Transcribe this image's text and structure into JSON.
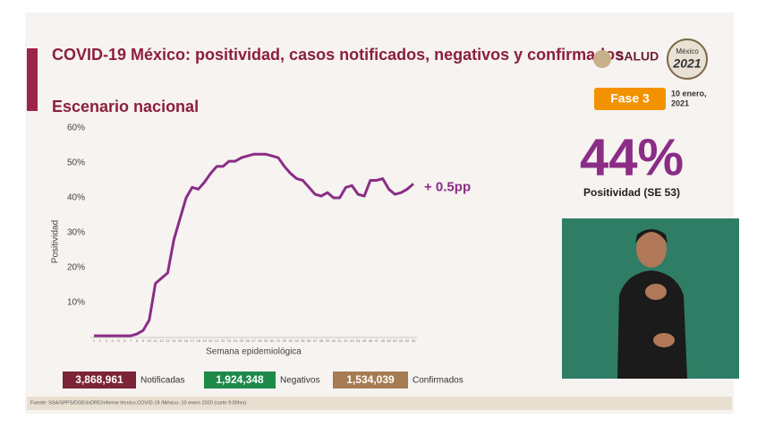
{
  "chart_data": {
    "type": "line",
    "title": "COVID-19 México: positividad, casos notificados, negativos y confirmados",
    "subtitle": "Escenario nacional",
    "y_label": "Positividad",
    "x_label": "Semana epidemiológica",
    "annotation": "+ 0.5pp",
    "color": "#8b2d86",
    "categories": [
      "1",
      "2",
      "3",
      "4",
      "5",
      "6",
      "7",
      "8",
      "9",
      "10",
      "11",
      "12",
      "13",
      "14",
      "15",
      "16",
      "17",
      "18",
      "19",
      "20",
      "21",
      "22",
      "23",
      "24",
      "25",
      "26",
      "27",
      "28",
      "29",
      "30",
      "31",
      "32",
      "33",
      "34",
      "35",
      "36",
      "37",
      "38",
      "39",
      "40",
      "41",
      "42",
      "43",
      "44",
      "45",
      "46",
      "47",
      "48",
      "49",
      "50",
      "51",
      "52",
      "53"
    ],
    "values": [
      0.5,
      0.5,
      0.5,
      0.5,
      0.5,
      0.5,
      0.5,
      1,
      2,
      5,
      15.5,
      17,
      18.5,
      28,
      34,
      40,
      43,
      42.5,
      44.5,
      47,
      49,
      49,
      50.5,
      50.5,
      51.5,
      52,
      52.5,
      52.5,
      52.5,
      52,
      51.5,
      49,
      47,
      45.5,
      45,
      43,
      41,
      40.5,
      41.5,
      40,
      40,
      43,
      43.5,
      41,
      40.5,
      45,
      45,
      45.5,
      42.5,
      41,
      41.5,
      42.5,
      44
    ],
    "ylim": [
      0,
      60
    ],
    "yticks": [
      {
        "value": 10,
        "label": "10%"
      },
      {
        "value": 20,
        "label": "20%"
      },
      {
        "value": 30,
        "label": "30%"
      },
      {
        "value": 40,
        "label": "40%"
      },
      {
        "value": 50,
        "label": "50%"
      },
      {
        "value": 60,
        "label": "60%"
      }
    ],
    "grid": false
  },
  "header": {
    "salud": "SALUD",
    "logo_top": "México",
    "logo_year": "2021",
    "phase": "Fase 3",
    "date": [
      "10 enero,",
      "2021"
    ]
  },
  "kpi": {
    "value": "44%",
    "label": "Positividad (SE 53)"
  },
  "summary": [
    {
      "value": "3,868,961",
      "label": "Notificadas"
    },
    {
      "value": "1,924,348",
      "label": "Negativos"
    },
    {
      "value": "1,534,039",
      "label": "Confirmados"
    }
  ],
  "footer": "Fuente: SSA/SPPS/DGE/InDRE/Informe técnico.COVID-19 /México- 10 enero 2020 (corte 9:00hrs)"
}
